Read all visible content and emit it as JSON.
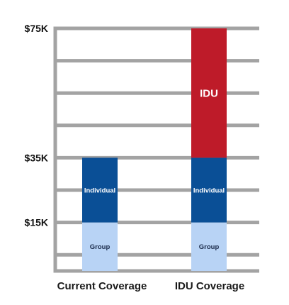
{
  "chart_data": {
    "type": "bar",
    "stacked": true,
    "categories": [
      "Current Coverage",
      "IDU Coverage"
    ],
    "y_unit": "thousand dollars",
    "ylim": [
      0,
      75
    ],
    "yticks": [
      {
        "value": 15,
        "label": "$15K"
      },
      {
        "value": 35,
        "label": "$35K"
      },
      {
        "value": 75,
        "label": "$75K"
      }
    ],
    "grid_values": [
      5,
      15,
      25,
      35,
      45,
      55,
      65,
      75
    ],
    "grid": true,
    "series": [
      {
        "name": "Group",
        "values": [
          15,
          15
        ],
        "color": "#b8d3f5",
        "label_color": "#1a2a4a"
      },
      {
        "name": "Individual",
        "values": [
          20,
          20
        ],
        "color": "#0a4f96",
        "label_color": "#ffffff"
      },
      {
        "name": "IDU",
        "values": [
          0,
          40
        ],
        "color": "#be1b29",
        "label_color": "#ffffff"
      }
    ],
    "grid_color": "#a3a3a3",
    "title": "",
    "xlabel": "",
    "ylabel": ""
  }
}
